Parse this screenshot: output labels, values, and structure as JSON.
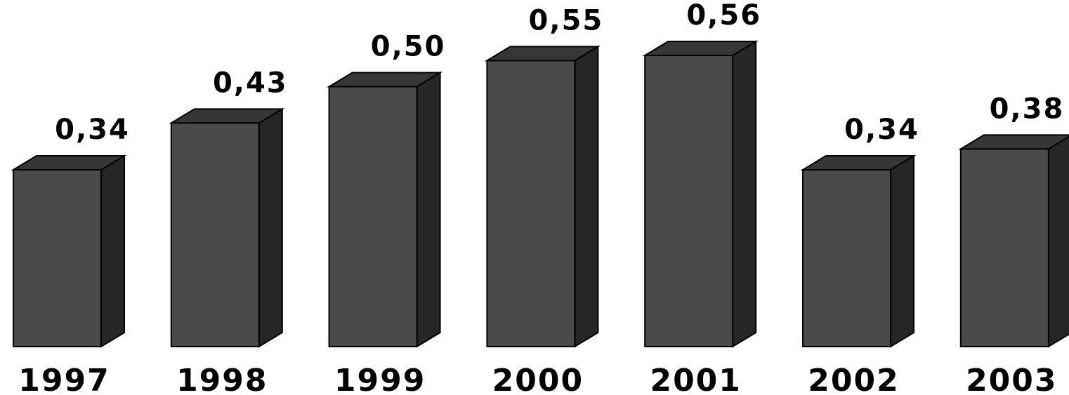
{
  "chart_data": {
    "type": "bar",
    "categories": [
      "1997",
      "1998",
      "1999",
      "2000",
      "2001",
      "2002",
      "2003"
    ],
    "values": [
      0.34,
      0.43,
      0.5,
      0.55,
      0.56,
      0.34,
      0.38
    ],
    "value_labels": [
      "0,34",
      "0,43",
      "0,50",
      "0,55",
      "0,56",
      "0,34",
      "0,38"
    ],
    "title": "",
    "xlabel": "",
    "ylabel": "",
    "ylim": [
      0,
      0.56
    ],
    "grid": false,
    "legend": "none",
    "style": "3d-column",
    "colors": {
      "front": "#4a4a4a",
      "side": "#262626",
      "top": "#363636",
      "outline": "#000000"
    }
  }
}
